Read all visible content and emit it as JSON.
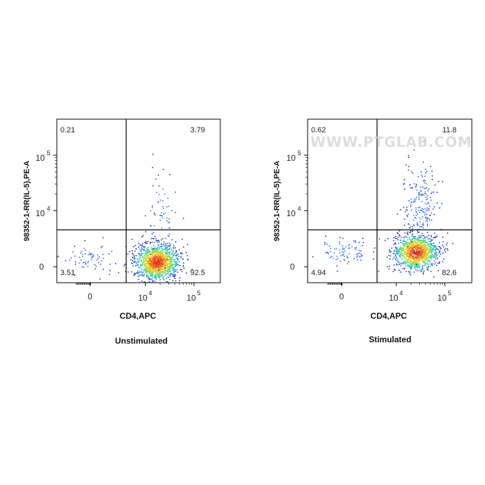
{
  "colors": {
    "axis": "#000000",
    "gate": "#000000",
    "low": "#1b2fa8",
    "mid": "#17c4d8",
    "high": "#f6d21a",
    "peak": "#e0331c"
  },
  "watermark": "WWW.PTGLAB.COM",
  "chart_data": [
    {
      "type": "scatter",
      "subtype": "flow-cytometry-density-dot-plot",
      "title": "Unstimulated",
      "xlabel": "CD4,APC",
      "ylabel": "98352-1-RR(IL-5),PE-A",
      "x_scale": "biexponential",
      "y_scale": "biexponential",
      "x_ticks": [
        {
          "label": "0",
          "base": "",
          "exp": ""
        },
        {
          "label": "",
          "base": "10",
          "exp": "4"
        },
        {
          "label": "",
          "base": "10",
          "exp": "5"
        }
      ],
      "y_ticks": [
        {
          "label": "0",
          "base": "",
          "exp": ""
        },
        {
          "label": "",
          "base": "10",
          "exp": "4"
        },
        {
          "label": "",
          "base": "10",
          "exp": "5"
        }
      ],
      "quadrant_percentages": {
        "upper_left": "0.21",
        "upper_right": "3.79",
        "lower_left": "3.51",
        "lower_right": "92.5"
      },
      "gate": {
        "x": 4000,
        "y": 4500
      },
      "populations": [
        {
          "name": "main",
          "x_center": 17000,
          "y_center": 1200,
          "share": 0.9
        },
        {
          "name": "cd4_negative",
          "x_center": -200,
          "y_center": 1500,
          "share": 0.05
        },
        {
          "name": "il5_positive",
          "x_center": 22000,
          "y_center": 7000,
          "share": 0.05
        }
      ]
    },
    {
      "type": "scatter",
      "subtype": "flow-cytometry-density-dot-plot",
      "title": "Stimulated",
      "xlabel": "CD4,APC",
      "ylabel": "98352-1-RR(IL-5),PE-A",
      "x_scale": "biexponential",
      "y_scale": "biexponential",
      "x_ticks": [
        {
          "label": "0",
          "base": "",
          "exp": ""
        },
        {
          "label": "",
          "base": "10",
          "exp": "4"
        },
        {
          "label": "",
          "base": "10",
          "exp": "5"
        }
      ],
      "y_ticks": [
        {
          "label": "0",
          "base": "",
          "exp": ""
        },
        {
          "label": "",
          "base": "10",
          "exp": "4"
        },
        {
          "label": "",
          "base": "10",
          "exp": "5"
        }
      ],
      "quadrant_percentages": {
        "upper_left": "0.62",
        "upper_right": "11.8",
        "lower_left": "4.94",
        "lower_right": "82.6"
      },
      "gate": {
        "x": 4000,
        "y": 4500
      },
      "populations": [
        {
          "name": "main",
          "x_center": 25000,
          "y_center": 1800,
          "share": 0.8
        },
        {
          "name": "cd4_negative",
          "x_center": 100,
          "y_center": 1800,
          "share": 0.06
        },
        {
          "name": "il5_positive",
          "x_center": 30000,
          "y_center": 12000,
          "share": 0.14
        }
      ]
    }
  ]
}
